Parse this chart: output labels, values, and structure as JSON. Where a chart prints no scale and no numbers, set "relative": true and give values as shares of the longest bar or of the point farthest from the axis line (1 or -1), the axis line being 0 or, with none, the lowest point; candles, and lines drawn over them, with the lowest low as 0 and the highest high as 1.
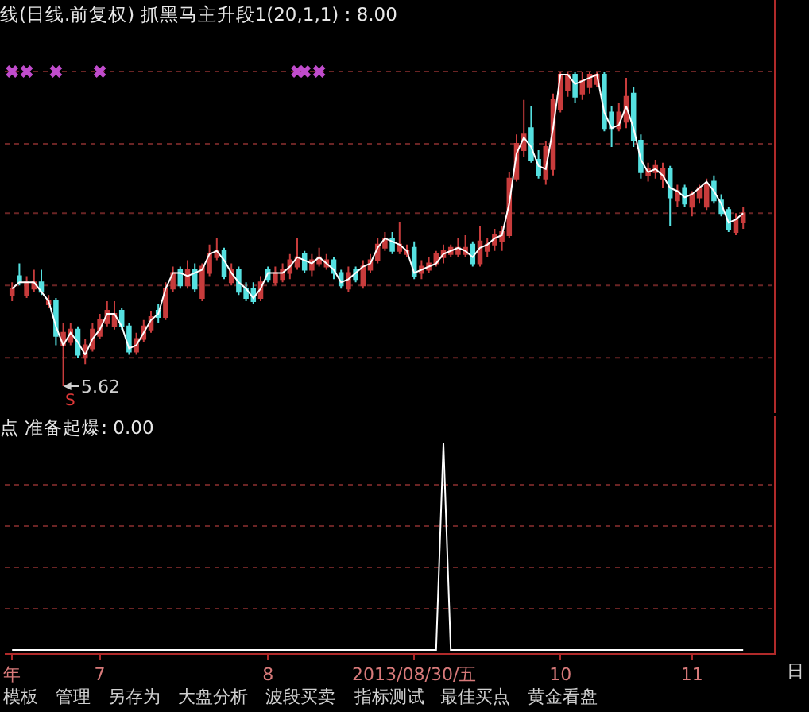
{
  "chart_data": [
    {
      "type": "candlestick",
      "title": "线(日线.前复权) 抓黑马主升段1(20,1,1) : 8.00",
      "categories": [
        null,
        null,
        null,
        null,
        null,
        null,
        null,
        null,
        null,
        null,
        null,
        null,
        null,
        null,
        null,
        null,
        null,
        null,
        null,
        null,
        null,
        null,
        null,
        null,
        null,
        null,
        null,
        null,
        null,
        null,
        null,
        null,
        null,
        null,
        null,
        null,
        null,
        null,
        null,
        null,
        null,
        null,
        null,
        null,
        null,
        null,
        null,
        null,
        null,
        null,
        null,
        null,
        null,
        null,
        null,
        null,
        null,
        null,
        null,
        null,
        null,
        null,
        null,
        null,
        null,
        null,
        null,
        null,
        null,
        null,
        null,
        null,
        null,
        null,
        null,
        null,
        null,
        null,
        null,
        null,
        null,
        null,
        null,
        null,
        null,
        null,
        null,
        null,
        null,
        null,
        null,
        null,
        null,
        null,
        null,
        null,
        null,
        null,
        null,
        null,
        null
      ],
      "ohlc": [
        [
          0.29,
          0.33,
          0.27,
          0.31
        ],
        [
          0.35,
          0.39,
          0.32,
          0.33
        ],
        [
          0.29,
          0.35,
          0.28,
          0.33
        ],
        [
          0.31,
          0.37,
          0.3,
          0.33
        ],
        [
          0.33,
          0.37,
          0.29,
          0.3
        ],
        [
          0.26,
          0.29,
          0.25,
          0.27
        ],
        [
          0.27,
          0.28,
          0.13,
          0.16
        ],
        [
          0.13,
          0.2,
          0.0,
          0.17
        ],
        [
          0.14,
          0.2,
          0.13,
          0.18
        ],
        [
          0.18,
          0.19,
          0.09,
          0.1
        ],
        [
          0.09,
          0.15,
          0.07,
          0.13
        ],
        [
          0.12,
          0.2,
          0.11,
          0.18
        ],
        [
          0.16,
          0.23,
          0.15,
          0.21
        ],
        [
          0.2,
          0.27,
          0.19,
          0.24
        ],
        [
          0.19,
          0.27,
          0.18,
          0.23
        ],
        [
          0.24,
          0.25,
          0.18,
          0.19
        ],
        [
          0.19,
          0.2,
          0.1,
          0.11
        ],
        [
          0.11,
          0.17,
          0.1,
          0.15
        ],
        [
          0.15,
          0.21,
          0.14,
          0.19
        ],
        [
          0.18,
          0.24,
          0.17,
          0.22
        ],
        [
          0.24,
          0.26,
          0.2,
          0.22
        ],
        [
          0.22,
          0.33,
          0.21,
          0.31
        ],
        [
          0.31,
          0.38,
          0.3,
          0.36
        ],
        [
          0.37,
          0.38,
          0.31,
          0.32
        ],
        [
          0.32,
          0.4,
          0.31,
          0.37
        ],
        [
          0.37,
          0.39,
          0.3,
          0.31
        ],
        [
          0.28,
          0.39,
          0.27,
          0.38
        ],
        [
          0.36,
          0.45,
          0.35,
          0.42
        ],
        [
          0.41,
          0.47,
          0.4,
          0.43
        ],
        [
          0.43,
          0.44,
          0.34,
          0.35
        ],
        [
          0.33,
          0.39,
          0.32,
          0.37
        ],
        [
          0.37,
          0.38,
          0.29,
          0.3
        ],
        [
          0.31,
          0.33,
          0.27,
          0.28
        ],
        [
          0.31,
          0.33,
          0.26,
          0.27
        ],
        [
          0.28,
          0.35,
          0.27,
          0.33
        ],
        [
          0.37,
          0.38,
          0.33,
          0.34
        ],
        [
          0.33,
          0.38,
          0.32,
          0.36
        ],
        [
          0.34,
          0.39,
          0.33,
          0.37
        ],
        [
          0.36,
          0.42,
          0.34,
          0.4
        ],
        [
          0.38,
          0.47,
          0.37,
          0.41
        ],
        [
          0.42,
          0.43,
          0.36,
          0.37
        ],
        [
          0.37,
          0.42,
          0.35,
          0.4
        ],
        [
          0.39,
          0.44,
          0.38,
          0.41
        ],
        [
          0.38,
          0.42,
          0.37,
          0.4
        ],
        [
          0.4,
          0.41,
          0.34,
          0.36
        ],
        [
          0.36,
          0.37,
          0.31,
          0.32
        ],
        [
          0.31,
          0.38,
          0.3,
          0.36
        ],
        [
          0.37,
          0.38,
          0.33,
          0.34
        ],
        [
          0.32,
          0.4,
          0.31,
          0.38
        ],
        [
          0.37,
          0.42,
          0.36,
          0.4
        ],
        [
          0.4,
          0.47,
          0.39,
          0.45
        ],
        [
          0.44,
          0.49,
          0.43,
          0.47
        ],
        [
          0.47,
          0.49,
          0.42,
          0.43
        ],
        [
          0.43,
          0.52,
          0.42,
          0.45
        ],
        [
          0.42,
          0.45,
          0.41,
          0.43
        ],
        [
          0.44,
          0.46,
          0.34,
          0.35
        ],
        [
          0.36,
          0.4,
          0.34,
          0.38
        ],
        [
          0.37,
          0.41,
          0.36,
          0.39
        ],
        [
          0.39,
          0.43,
          0.38,
          0.42
        ],
        [
          0.41,
          0.45,
          0.39,
          0.43
        ],
        [
          0.42,
          0.45,
          0.41,
          0.44
        ],
        [
          0.42,
          0.47,
          0.41,
          0.44
        ],
        [
          0.42,
          0.48,
          0.41,
          0.44
        ],
        [
          0.45,
          0.46,
          0.38,
          0.39
        ],
        [
          0.39,
          0.51,
          0.38,
          0.46
        ],
        [
          0.43,
          0.47,
          0.41,
          0.45
        ],
        [
          0.45,
          0.5,
          0.43,
          0.48
        ],
        [
          0.46,
          0.51,
          0.43,
          0.49
        ],
        [
          0.48,
          0.68,
          0.47,
          0.66
        ],
        [
          0.66,
          0.8,
          0.65,
          0.77
        ],
        [
          0.75,
          0.91,
          0.73,
          0.8
        ],
        [
          0.82,
          0.89,
          0.71,
          0.72
        ],
        [
          0.72,
          0.75,
          0.66,
          0.67
        ],
        [
          0.66,
          0.78,
          0.64,
          0.76
        ],
        [
          0.69,
          0.93,
          0.67,
          0.91
        ],
        [
          0.88,
          1.0,
          0.87,
          0.99
        ],
        [
          0.94,
          1.0,
          0.92,
          0.99
        ],
        [
          0.99,
          1.0,
          0.9,
          0.92
        ],
        [
          0.93,
          1.0,
          0.91,
          0.97
        ],
        [
          0.95,
          1.0,
          0.93,
          0.99
        ],
        [
          0.96,
          1.0,
          0.95,
          0.99
        ],
        [
          0.99,
          1.0,
          0.81,
          0.82
        ],
        [
          0.87,
          0.89,
          0.76,
          0.82
        ],
        [
          0.82,
          0.9,
          0.81,
          0.87
        ],
        [
          0.84,
          0.98,
          0.82,
          0.92
        ],
        [
          0.93,
          0.95,
          0.76,
          0.78
        ],
        [
          0.78,
          0.8,
          0.66,
          0.68
        ],
        [
          0.67,
          0.71,
          0.65,
          0.69
        ],
        [
          0.68,
          0.72,
          0.66,
          0.7
        ],
        [
          0.66,
          0.71,
          0.63,
          0.69
        ],
        [
          0.69,
          0.7,
          0.51,
          0.6
        ],
        [
          0.59,
          0.64,
          0.57,
          0.62
        ],
        [
          0.63,
          0.64,
          0.57,
          0.58
        ],
        [
          0.57,
          0.62,
          0.54,
          0.61
        ],
        [
          0.6,
          0.64,
          0.58,
          0.63
        ],
        [
          0.57,
          0.66,
          0.56,
          0.64
        ],
        [
          0.65,
          0.67,
          0.58,
          0.59
        ],
        [
          0.59,
          0.61,
          0.54,
          0.55
        ],
        [
          0.56,
          0.57,
          0.49,
          0.5
        ],
        [
          0.49,
          0.55,
          0.48,
          0.53
        ],
        [
          0.52,
          0.57,
          0.5,
          0.55
        ]
      ],
      "colors": [
        "#c83c3c",
        "#55e0e0",
        "#c83c3c",
        "#c83c3c",
        "#55e0e0",
        "#c83c3c",
        "#55e0e0",
        "#c83c3c",
        "#c83c3c",
        "#55e0e0",
        "#c83c3c",
        "#c83c3c",
        "#c83c3c",
        "#c83c3c",
        "#c83c3c",
        "#55e0e0",
        "#55e0e0",
        "#c83c3c",
        "#c83c3c",
        "#c83c3c",
        "#55e0e0",
        "#c83c3c",
        "#c83c3c",
        "#55e0e0",
        "#c83c3c",
        "#55e0e0",
        "#c83c3c",
        "#c83c3c",
        "#c83c3c",
        "#55e0e0",
        "#c83c3c",
        "#55e0e0",
        "#55e0e0",
        "#55e0e0",
        "#c83c3c",
        "#55e0e0",
        "#c83c3c",
        "#c83c3c",
        "#c83c3c",
        "#c83c3c",
        "#55e0e0",
        "#c83c3c",
        "#c83c3c",
        "#c83c3c",
        "#55e0e0",
        "#55e0e0",
        "#c83c3c",
        "#55e0e0",
        "#c83c3c",
        "#c83c3c",
        "#c83c3c",
        "#c83c3c",
        "#55e0e0",
        "#c83c3c",
        "#c83c3c",
        "#55e0e0",
        "#c83c3c",
        "#c83c3c",
        "#c83c3c",
        "#c83c3c",
        "#c83c3c",
        "#c83c3c",
        "#c83c3c",
        "#55e0e0",
        "#c83c3c",
        "#c83c3c",
        "#c83c3c",
        "#c83c3c",
        "#c83c3c",
        "#c83c3c",
        "#c83c3c",
        "#55e0e0",
        "#55e0e0",
        "#c83c3c",
        "#c83c3c",
        "#c83c3c",
        "#c83c3c",
        "#55e0e0",
        "#c83c3c",
        "#c83c3c",
        "#c83c3c",
        "#55e0e0",
        "#55e0e0",
        "#c83c3c",
        "#c83c3c",
        "#55e0e0",
        "#55e0e0",
        "#c83c3c",
        "#c83c3c",
        "#c83c3c",
        "#55e0e0",
        "#c83c3c",
        "#55e0e0",
        "#c83c3c",
        "#c83c3c",
        "#c83c3c",
        "#55e0e0",
        "#55e0e0",
        "#55e0e0",
        "#c83c3c",
        "#c83c3c"
      ],
      "relative": true,
      "series": [
        {
          "type": "line",
          "color": "#ffffff",
          "values": [
            0.31,
            0.33,
            0.33,
            0.33,
            0.3,
            0.27,
            0.19,
            0.13,
            0.17,
            0.14,
            0.1,
            0.15,
            0.18,
            0.23,
            0.23,
            0.19,
            0.12,
            0.13,
            0.17,
            0.21,
            0.23,
            0.31,
            0.36,
            0.36,
            0.35,
            0.36,
            0.37,
            0.42,
            0.43,
            0.4,
            0.36,
            0.33,
            0.31,
            0.28,
            0.31,
            0.36,
            0.36,
            0.36,
            0.38,
            0.41,
            0.4,
            0.39,
            0.41,
            0.39,
            0.37,
            0.33,
            0.34,
            0.36,
            0.38,
            0.39,
            0.44,
            0.47,
            0.46,
            0.45,
            0.43,
            0.36,
            0.37,
            0.38,
            0.39,
            0.42,
            0.43,
            0.44,
            0.43,
            0.41,
            0.44,
            0.45,
            0.47,
            0.48,
            0.58,
            0.74,
            0.79,
            0.76,
            0.7,
            0.69,
            0.82,
            0.99,
            0.99,
            0.96,
            0.97,
            0.98,
            0.99,
            0.87,
            0.82,
            0.83,
            0.89,
            0.82,
            0.72,
            0.68,
            0.69,
            0.67,
            0.63,
            0.62,
            0.6,
            0.61,
            0.63,
            0.65,
            0.62,
            0.58,
            0.52,
            0.53,
            0.55
          ]
        },
        {
          "type": "scatter",
          "color": "#c04ccc",
          "marker": "cross",
          "values": [
            1,
            null,
            1,
            null,
            null,
            null,
            1,
            null,
            null,
            null,
            null,
            null,
            1,
            null,
            null,
            null,
            null,
            null,
            null,
            null,
            null,
            null,
            null,
            null,
            null,
            null,
            null,
            null,
            null,
            null,
            null,
            null,
            null,
            null,
            null,
            null,
            null,
            null,
            null,
            1,
            1,
            null,
            1,
            null,
            null,
            null,
            null,
            null,
            null,
            null,
            null,
            null,
            null,
            null,
            null,
            null,
            null,
            null,
            null,
            null,
            null,
            null,
            null,
            null,
            null,
            null,
            null,
            null,
            null,
            null,
            null,
            null,
            null,
            null,
            null,
            null,
            null,
            null,
            null,
            null,
            null,
            null,
            null,
            null,
            null,
            null,
            null,
            null,
            null,
            null,
            null,
            null,
            null,
            null,
            null,
            null,
            null,
            null,
            null,
            null,
            null
          ]
        }
      ],
      "ref_lines": [
        {
          "axis": "y",
          "value": 0.09,
          "color": "#6a2424",
          "line_style": "dotted"
        },
        {
          "axis": "y",
          "value": 0.32,
          "color": "#6a2424",
          "line_style": "dotted"
        },
        {
          "axis": "y",
          "value": 0.55,
          "color": "#6a2424",
          "line_style": "dotted"
        },
        {
          "axis": "y",
          "value": 0.77,
          "color": "#6a2424",
          "line_style": "dotted"
        },
        {
          "axis": "y",
          "value": 1.0,
          "color": "#6a2424",
          "line_style": "dotted"
        }
      ],
      "annotations": [
        "5.62",
        "S"
      ]
    },
    {
      "type": "line",
      "title": "点 准备起爆: 0.00",
      "categories": [
        "年",
        null,
        null,
        null,
        null,
        null,
        null,
        null,
        null,
        null,
        null,
        null,
        "7",
        null,
        null,
        null,
        null,
        null,
        null,
        null,
        null,
        null,
        null,
        null,
        null,
        null,
        null,
        null,
        null,
        null,
        null,
        null,
        null,
        null,
        null,
        "8",
        null,
        null,
        null,
        null,
        null,
        null,
        null,
        null,
        null,
        null,
        null,
        null,
        null,
        null,
        null,
        null,
        null,
        null,
        null,
        "2013/08/30/五",
        null,
        null,
        null,
        null,
        null,
        null,
        null,
        null,
        null,
        null,
        null,
        null,
        null,
        null,
        null,
        null,
        null,
        null,
        null,
        "10",
        null,
        null,
        null,
        null,
        null,
        null,
        null,
        null,
        null,
        null,
        null,
        null,
        null,
        null,
        null,
        null,
        null,
        "11",
        null,
        null,
        null,
        null,
        null,
        null,
        null
      ],
      "values": [
        0,
        0,
        0,
        0,
        0,
        0,
        0,
        0,
        0,
        0,
        0,
        0,
        0,
        0,
        0,
        0,
        0,
        0,
        0,
        0,
        0,
        0,
        0,
        0,
        0,
        0,
        0,
        0,
        0,
        0,
        0,
        0,
        0,
        0,
        0,
        0,
        0,
        0,
        0,
        0,
        0,
        0,
        0,
        0,
        0,
        0,
        0,
        0,
        0,
        0,
        0,
        0,
        0,
        0,
        0,
        0,
        0,
        0,
        0,
        1,
        0,
        0,
        0,
        0,
        0,
        0,
        0,
        0,
        0,
        0,
        0,
        0,
        0,
        0,
        0,
        0,
        0,
        0,
        0,
        0,
        0,
        0,
        0,
        0,
        0,
        0,
        0,
        0,
        0,
        0,
        0,
        0,
        0,
        0,
        0,
        0,
        0,
        0,
        0,
        0,
        0
      ],
      "color": "#ffffff",
      "relative": true,
      "tick_labels": "x",
      "ref_lines": [
        {
          "axis": "y",
          "value": 0.2,
          "color": "#6a2424",
          "line_style": "dotted"
        },
        {
          "axis": "y",
          "value": 0.4,
          "color": "#6a2424",
          "line_style": "dotted"
        },
        {
          "axis": "y",
          "value": 0.6,
          "color": "#6a2424",
          "line_style": "dotted"
        },
        {
          "axis": "y",
          "value": 0.8,
          "color": "#6a2424",
          "line_style": "dotted"
        }
      ],
      "annotations": [
        "模板",
        "管理",
        "另存为",
        "大盘分析",
        "波段买卖",
        "指标测试",
        "最佳买点",
        "黄金看盘",
        "日"
      ]
    }
  ]
}
